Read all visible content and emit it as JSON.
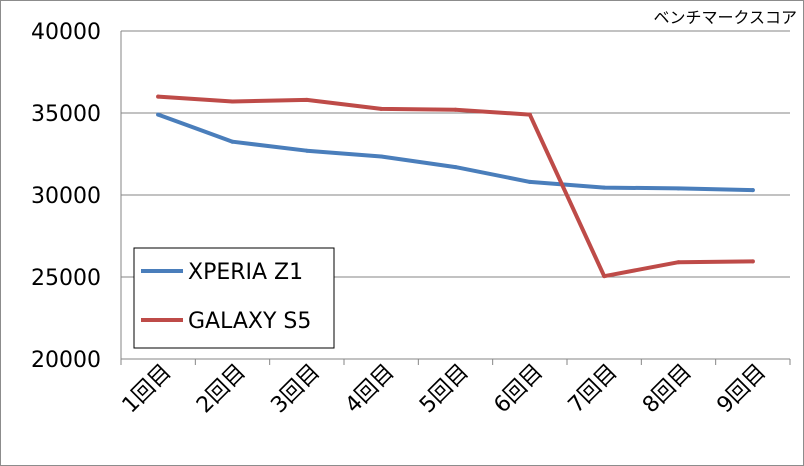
{
  "chart_data": {
    "type": "line",
    "title": "ベンチマークスコア",
    "categories": [
      "1回目",
      "2回目",
      "3回目",
      "4回目",
      "5回目",
      "6回目",
      "7回目",
      "8回目",
      "9回目"
    ],
    "series": [
      {
        "name": "XPERIA Z1",
        "color": "#4a7ebb",
        "values": [
          34900,
          33250,
          32700,
          32350,
          31700,
          30800,
          30450,
          30400,
          30300
        ]
      },
      {
        "name": "GALAXY S5",
        "color": "#be4b48",
        "values": [
          36000,
          35700,
          35800,
          35250,
          35200,
          34900,
          25050,
          25900,
          25950
        ]
      }
    ],
    "ylim": [
      20000,
      40000
    ],
    "yticks": [
      20000,
      25000,
      30000,
      35000,
      40000
    ],
    "grid": true,
    "legend": "bottom-left"
  }
}
